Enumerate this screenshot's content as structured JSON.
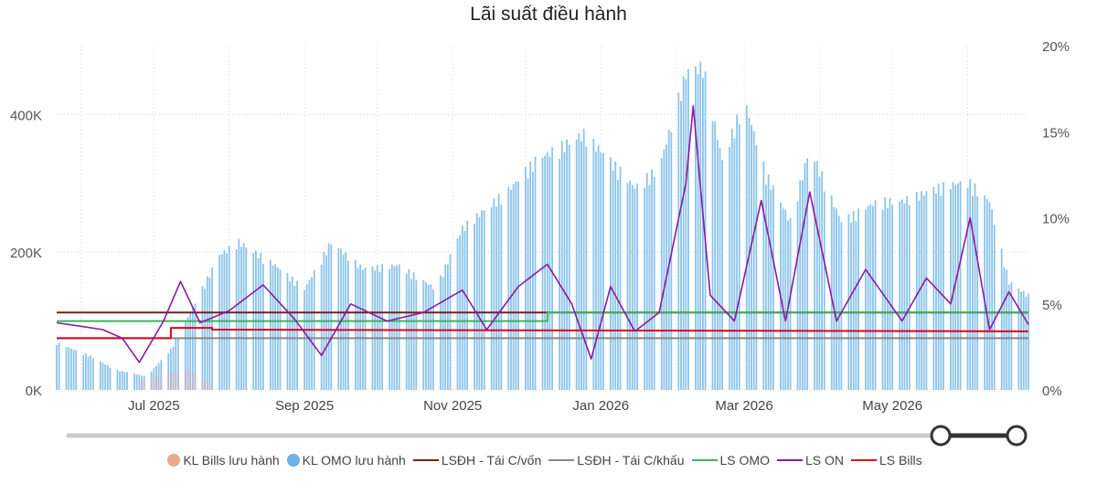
{
  "chart_data": {
    "type": "bar+line",
    "title": "Lãi suất điều hành",
    "left_axis": {
      "ticks": [
        "0K",
        "200K",
        "400K"
      ],
      "ylim": [
        0,
        500000
      ]
    },
    "right_axis": {
      "ticks": [
        "0%",
        "5%",
        "10%",
        "15%",
        "20%"
      ],
      "ylim": [
        0,
        20
      ]
    },
    "x_axis": {
      "tick_labels": [
        "Jul 2025",
        "Sep 2025",
        "Nov 2025",
        "Jan 2026",
        "Mar 2026",
        "May 2026"
      ],
      "range": [
        "2025-05-22",
        "2026-06-26"
      ]
    },
    "legend": [
      {
        "name": "KL Bills lưu hành",
        "kind": "dot",
        "color": "#e8a98c"
      },
      {
        "name": "KL OMO lưu hành",
        "kind": "dot",
        "color": "#6fb0e5"
      },
      {
        "name": "LSĐH - Tái C/vốn",
        "kind": "line",
        "color": "#7b1e12"
      },
      {
        "name": "LSĐH - Tái C/khấu",
        "kind": "line",
        "color": "#888888"
      },
      {
        "name": "LS OMO",
        "kind": "line",
        "color": "#3cb45a"
      },
      {
        "name": "LS ON",
        "kind": "line",
        "color": "#8a1aa0"
      },
      {
        "name": "LS Bills",
        "kind": "line",
        "color": "#e3001b"
      }
    ],
    "omo_outstanding": [
      [
        "2025-05-22",
        70000
      ],
      [
        "2025-06-05",
        50000
      ],
      [
        "2025-06-15",
        30000
      ],
      [
        "2025-06-28",
        20000
      ],
      [
        "2025-07-08",
        60000
      ],
      [
        "2025-07-18",
        130000
      ],
      [
        "2025-07-28",
        200000
      ],
      [
        "2025-08-05",
        220000
      ],
      [
        "2025-08-20",
        185000
      ],
      [
        "2025-09-01",
        150000
      ],
      [
        "2025-09-12",
        220000
      ],
      [
        "2025-09-25",
        180000
      ],
      [
        "2025-10-10",
        185000
      ],
      [
        "2025-10-25",
        150000
      ],
      [
        "2025-11-05",
        240000
      ],
      [
        "2025-11-15",
        270000
      ],
      [
        "2025-11-25",
        300000
      ],
      [
        "2025-12-05",
        340000
      ],
      [
        "2025-12-15",
        360000
      ],
      [
        "2025-12-25",
        380000
      ],
      [
        "2026-01-05",
        340000
      ],
      [
        "2026-01-15",
        300000
      ],
      [
        "2026-01-25",
        330000
      ],
      [
        "2026-02-05",
        470000
      ],
      [
        "2026-02-12",
        480000
      ],
      [
        "2026-02-20",
        340000
      ],
      [
        "2026-03-01",
        430000
      ],
      [
        "2026-03-10",
        320000
      ],
      [
        "2026-03-20",
        250000
      ],
      [
        "2026-03-28",
        360000
      ],
      [
        "2026-04-10",
        250000
      ],
      [
        "2026-04-25",
        280000
      ],
      [
        "2026-05-05",
        280000
      ],
      [
        "2026-05-20",
        300000
      ],
      [
        "2026-06-01",
        310000
      ],
      [
        "2026-06-10",
        280000
      ],
      [
        "2026-06-18",
        160000
      ],
      [
        "2026-06-26",
        140000
      ]
    ],
    "bills_outstanding": [
      [
        "2025-07-01",
        20000
      ],
      [
        "2025-07-10",
        25000
      ],
      [
        "2025-07-15",
        30000
      ],
      [
        "2025-07-20",
        20000
      ]
    ],
    "ls_on": [
      [
        "2025-05-22",
        3.9
      ],
      [
        "2025-06-01",
        3.7
      ],
      [
        "2025-06-10",
        3.5
      ],
      [
        "2025-06-18",
        3.0
      ],
      [
        "2025-06-25",
        1.6
      ],
      [
        "2025-07-05",
        4.0
      ],
      [
        "2025-07-12",
        6.3
      ],
      [
        "2025-07-20",
        3.9
      ],
      [
        "2025-08-01",
        4.6
      ],
      [
        "2025-08-15",
        6.1
      ],
      [
        "2025-08-28",
        4.1
      ],
      [
        "2025-09-08",
        2.0
      ],
      [
        "2025-09-20",
        5.0
      ],
      [
        "2025-10-05",
        4.0
      ],
      [
        "2025-10-20",
        4.5
      ],
      [
        "2025-11-05",
        5.8
      ],
      [
        "2025-11-15",
        3.5
      ],
      [
        "2025-11-28",
        6.0
      ],
      [
        "2025-12-10",
        7.3
      ],
      [
        "2025-12-20",
        5.0
      ],
      [
        "2025-12-28",
        1.8
      ],
      [
        "2026-01-05",
        6.0
      ],
      [
        "2026-01-15",
        3.4
      ],
      [
        "2026-01-25",
        4.5
      ],
      [
        "2026-02-05",
        12.0
      ],
      [
        "2026-02-08",
        16.5
      ],
      [
        "2026-02-15",
        5.5
      ],
      [
        "2026-02-25",
        4.0
      ],
      [
        "2026-03-08",
        11.0
      ],
      [
        "2026-03-18",
        4.0
      ],
      [
        "2026-03-28",
        11.5
      ],
      [
        "2026-04-08",
        4.0
      ],
      [
        "2026-04-20",
        7.0
      ],
      [
        "2026-05-05",
        4.0
      ],
      [
        "2026-05-15",
        6.5
      ],
      [
        "2026-05-25",
        5.0
      ],
      [
        "2026-06-02",
        10.0
      ],
      [
        "2026-06-10",
        3.5
      ],
      [
        "2026-06-18",
        5.7
      ],
      [
        "2026-06-26",
        3.8
      ]
    ],
    "lsdh_tai_c_von": [
      [
        "2025-05-22",
        4.5
      ],
      [
        "2026-06-26",
        4.5
      ]
    ],
    "lsdh_tai_c_khau": [
      [
        "2025-05-22",
        3.0
      ],
      [
        "2026-06-26",
        3.0
      ]
    ],
    "ls_omo": [
      [
        "2025-05-22",
        4.0
      ],
      [
        "2025-12-10",
        4.0
      ],
      [
        "2025-12-10",
        4.5
      ],
      [
        "2026-06-26",
        4.5
      ]
    ],
    "ls_bills": [
      [
        "2025-05-22",
        3.0
      ],
      [
        "2025-07-08",
        3.0
      ],
      [
        "2025-07-08",
        3.6
      ],
      [
        "2025-07-25",
        3.6
      ],
      [
        "2025-07-25",
        3.5
      ],
      [
        "2026-06-26",
        3.4
      ]
    ],
    "grid": true,
    "legend_position": "bottom"
  },
  "range_slider": {
    "start": 0.92,
    "end": 1.0
  }
}
